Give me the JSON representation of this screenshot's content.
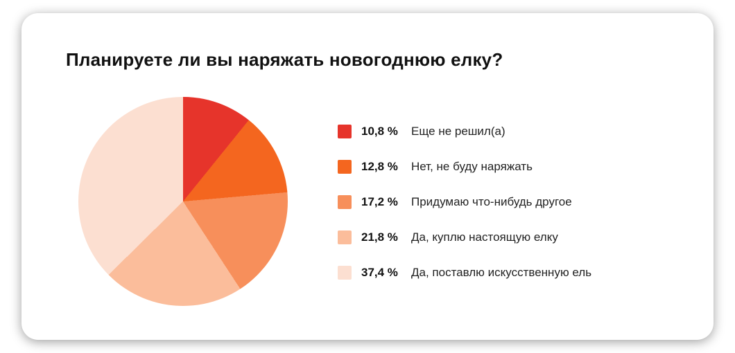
{
  "card": {
    "title": "Планируете ли вы наряжать новогоднюю елку?"
  },
  "chart_data": {
    "type": "pie",
    "title": "Планируете ли вы наряжать новогоднюю елку?",
    "start_angle_deg": 0,
    "direction": "clockwise",
    "legend_position": "right",
    "slices": [
      {
        "label": "Еще не решил(а)",
        "value": 10.8,
        "percent_label": "10,8 %",
        "color": "#e6342b"
      },
      {
        "label": "Нет, не буду наряжать",
        "value": 12.8,
        "percent_label": "12,8 %",
        "color": "#f4661f"
      },
      {
        "label": "Придумаю что-нибудь другое",
        "value": 17.2,
        "percent_label": "17,2 %",
        "color": "#f78f5b"
      },
      {
        "label": "Да, куплю настоящую елку",
        "value": 21.8,
        "percent_label": "21,8 %",
        "color": "#fbbd9b"
      },
      {
        "label": "Да, поставлю искусственную ель",
        "value": 37.4,
        "percent_label": "37,4 %",
        "color": "#fcdfd1"
      }
    ]
  }
}
